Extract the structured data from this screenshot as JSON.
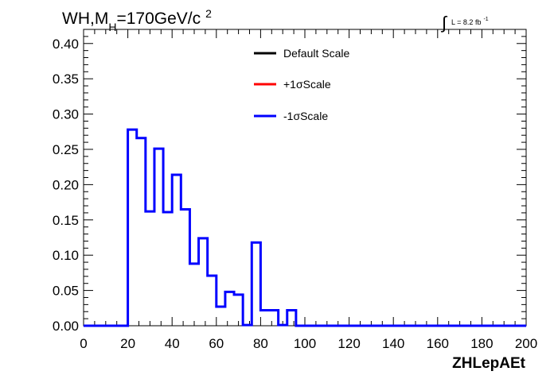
{
  "chart_data": {
    "type": "line",
    "title_parts": {
      "main": "WH,M",
      "sub": "H",
      "rest": "=170GeV/c",
      "sup": "2"
    },
    "lumi": {
      "symbol": "∫",
      "text": "L = 8.2 fb",
      "sup": "-1"
    },
    "xlabel": "ZHLepAEt",
    "ylabel": "",
    "xlim": [
      0,
      200
    ],
    "ylim": [
      0,
      0.42
    ],
    "xticks": [
      "0",
      "20",
      "40",
      "60",
      "80",
      "100",
      "120",
      "140",
      "160",
      "180",
      "200"
    ],
    "yticks": [
      "0.00",
      "0.05",
      "0.10",
      "0.15",
      "0.20",
      "0.25",
      "0.30",
      "0.35",
      "0.40"
    ],
    "legend": [
      {
        "label": "Default Scale",
        "color": "#000000"
      },
      {
        "label": "+1σScale",
        "color": "#ff0000"
      },
      {
        "label": "-1σScale",
        "color": "#0000ff"
      }
    ],
    "series": [
      {
        "name": "-1σScale",
        "color": "#0000ff",
        "bin_width": 4,
        "bin_start": 0,
        "values": [
          0,
          0,
          0,
          0,
          0,
          0.278,
          0.266,
          0.162,
          0.251,
          0.161,
          0.214,
          0.165,
          0.088,
          0.124,
          0.071,
          0.027,
          0.048,
          0.044,
          0.001,
          0.118,
          0.022,
          0.022,
          0.001,
          0.022,
          0,
          0,
          0,
          0,
          0,
          0,
          0,
          0,
          0,
          0,
          0,
          0,
          0,
          0,
          0,
          0,
          0,
          0,
          0,
          0,
          0,
          0,
          0,
          0,
          0,
          0
        ]
      }
    ]
  }
}
